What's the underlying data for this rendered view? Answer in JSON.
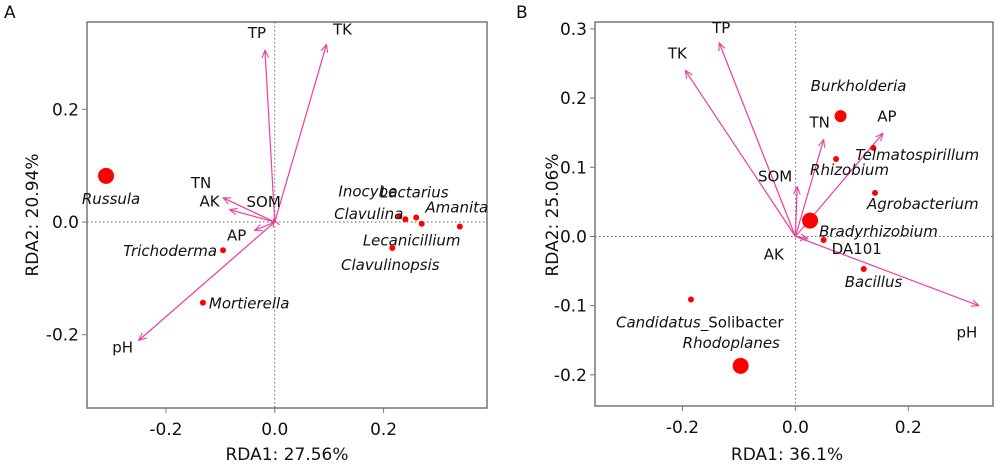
{
  "chart_data": [
    {
      "type": "scatter",
      "panel_label": "A",
      "title": "",
      "xlabel": "RDA1: 27.56%",
      "ylabel": "RDA2: 20.94%",
      "xlim": [
        -0.345,
        0.39
      ],
      "ylim": [
        -0.33,
        0.355
      ],
      "xticks": [
        -0.2,
        0.0,
        0.2
      ],
      "xtick_labels": [
        "-0.2",
        "0.0",
        "0.2"
      ],
      "yticks": [
        -0.2,
        0.0,
        0.2
      ],
      "ytick_labels": [
        "-0.2",
        "0.0",
        "0.2"
      ],
      "reference_lines": {
        "x": 0,
        "y": 0,
        "style": "dotted"
      },
      "grid": false,
      "arrow_color": "#ee3d9a",
      "point_color": "#ff0000",
      "env_vectors": [
        {
          "name": "TP",
          "x": -0.018,
          "y": 0.305
        },
        {
          "name": "TK",
          "x": 0.095,
          "y": 0.315
        },
        {
          "name": "TN",
          "x": -0.095,
          "y": 0.043
        },
        {
          "name": "AK",
          "x": -0.083,
          "y": 0.022
        },
        {
          "name": "SOM",
          "x": -0.002,
          "y": 0.005
        },
        {
          "name": "AP",
          "x": -0.037,
          "y": -0.015
        },
        {
          "name": "pH",
          "x": -0.25,
          "y": -0.21
        }
      ],
      "taxa": [
        {
          "name": "Russula",
          "x": -0.31,
          "y": 0.082,
          "size": "large",
          "italic": true
        },
        {
          "name": "Trichoderma",
          "x": -0.095,
          "y": -0.05,
          "size": "small",
          "italic": true
        },
        {
          "name": "Mortierella",
          "x": -0.132,
          "y": -0.143,
          "size": "small",
          "italic": true
        },
        {
          "name": "Inocybe",
          "x": 0.229,
          "y": 0.01,
          "size": "small",
          "italic": true
        },
        {
          "name": "Clavulina",
          "x": 0.24,
          "y": 0.005,
          "size": "small",
          "italic": true
        },
        {
          "name": "Lactarius",
          "x": 0.26,
          "y": 0.008,
          "size": "small",
          "italic": true
        },
        {
          "name": "Amanita",
          "x": 0.34,
          "y": -0.008,
          "size": "small",
          "italic": true
        },
        {
          "name": "Lecanicillium",
          "x": 0.27,
          "y": -0.003,
          "size": "small",
          "italic": true
        },
        {
          "name": "Clavulinopsis",
          "x": 0.216,
          "y": -0.046,
          "size": "small",
          "italic": true
        }
      ]
    },
    {
      "type": "scatter",
      "panel_label": "B",
      "title": "",
      "xlabel": "RDA1: 36.1%",
      "ylabel": "RDA2: 25.06%",
      "xlim": [
        -0.355,
        0.35
      ],
      "ylim": [
        -0.245,
        0.31
      ],
      "xticks": [
        -0.2,
        0.0,
        0.2
      ],
      "xtick_labels": [
        "-0.2",
        "0.0",
        "0.2"
      ],
      "yticks": [
        -0.2,
        -0.1,
        0.0,
        0.1,
        0.2,
        0.3
      ],
      "ytick_labels": [
        "-0.2",
        "-0.1",
        "0.0",
        "0.1",
        "0.2",
        "0.3"
      ],
      "reference_lines": {
        "x": 0,
        "y": 0,
        "style": "dotted"
      },
      "grid": false,
      "arrow_color": "#ee3d9a",
      "point_color": "#ff0000",
      "env_vectors": [
        {
          "name": "TP",
          "x": -0.135,
          "y": 0.28
        },
        {
          "name": "TK",
          "x": -0.195,
          "y": 0.24
        },
        {
          "name": "TN",
          "x": 0.05,
          "y": 0.14
        },
        {
          "name": "AP",
          "x": 0.155,
          "y": 0.149
        },
        {
          "name": "SOM",
          "x": 0.003,
          "y": 0.072
        },
        {
          "name": "AK",
          "x": 0.022,
          "y": -0.003
        },
        {
          "name": "pH",
          "x": 0.325,
          "y": -0.1
        }
      ],
      "taxa": [
        {
          "name": "Burkholderia",
          "x": 0.08,
          "y": 0.174,
          "size": "medium",
          "italic": true
        },
        {
          "name": "Rhizobium",
          "x": 0.072,
          "y": 0.112,
          "size": "small",
          "italic": true
        },
        {
          "name": "Telmatospirillum",
          "x": 0.138,
          "y": 0.128,
          "size": "small",
          "italic": true
        },
        {
          "name": "Agrobacterium",
          "x": 0.141,
          "y": 0.063,
          "size": "small",
          "italic": true
        },
        {
          "name": "Bradyrhizobium",
          "x": 0.026,
          "y": 0.023,
          "size": "large",
          "italic": true
        },
        {
          "name": "DA101",
          "x": 0.05,
          "y": -0.005,
          "size": "small",
          "italic": false
        },
        {
          "name": "Bacillus",
          "x": 0.121,
          "y": -0.047,
          "size": "small",
          "italic": true
        },
        {
          "name": "Candidatus_Solibacter",
          "label_italic_part": "Candidatus",
          "label_plain_part": "_Solibacter",
          "x": -0.185,
          "y": -0.091,
          "size": "small",
          "italic": true
        },
        {
          "name": "Rhodoplanes",
          "x": -0.097,
          "y": -0.187,
          "size": "large",
          "italic": true
        }
      ]
    }
  ]
}
